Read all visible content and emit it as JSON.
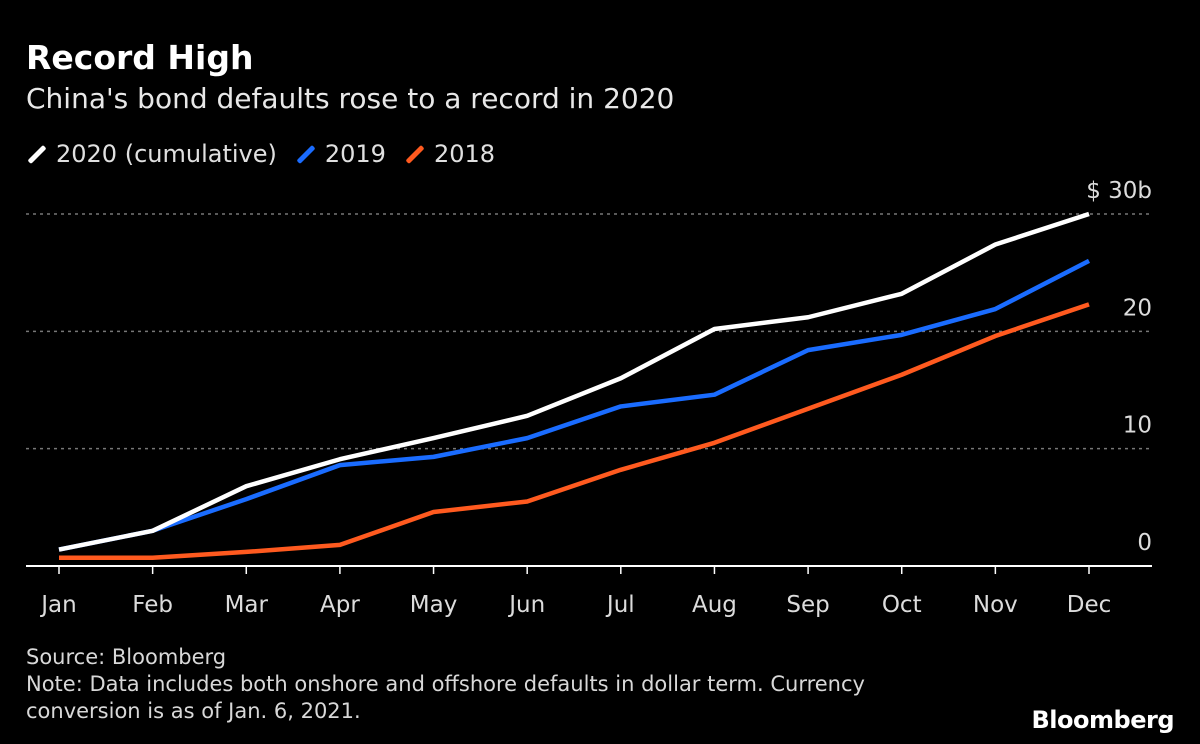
{
  "chart_data": {
    "type": "line",
    "title": "Record High",
    "subtitle": "China's bond defaults rose to a record in 2020",
    "categories": [
      "Jan",
      "Feb",
      "Mar",
      "Apr",
      "May",
      "Jun",
      "Jul",
      "Aug",
      "Sep",
      "Oct",
      "Nov",
      "Dec"
    ],
    "series": [
      {
        "name": "2020 (cumulative)",
        "color": "#ffffff",
        "values": [
          1.4,
          3.0,
          6.8,
          9.1,
          10.9,
          12.8,
          16.0,
          20.2,
          21.2,
          23.2,
          27.4,
          30.0
        ]
      },
      {
        "name": "2019",
        "color": "#1a6cff",
        "values": [
          1.4,
          3.0,
          5.7,
          8.6,
          9.3,
          10.9,
          13.6,
          14.6,
          18.4,
          19.7,
          21.9,
          26.0
        ]
      },
      {
        "name": "2018",
        "color": "#ff5a1f",
        "values": [
          0.7,
          0.7,
          1.2,
          1.8,
          4.6,
          5.5,
          8.2,
          10.5,
          13.4,
          16.3,
          19.6,
          22.3
        ]
      }
    ],
    "yticks": [
      {
        "value": 0,
        "label": "0"
      },
      {
        "value": 10,
        "label": "10"
      },
      {
        "value": 20,
        "label": "20"
      },
      {
        "value": 30,
        "label": "$ 30b"
      }
    ],
    "ylim": [
      0,
      30
    ],
    "grid": true,
    "legend": "top-left",
    "xlabel": "",
    "ylabel": ""
  },
  "footer": {
    "source": "Source: Bloomberg",
    "note_line1": "Note: Data includes both onshore and offshore defaults in dollar term. Currency",
    "note_line2": "conversion is as of Jan. 6, 2021."
  },
  "logo": "Bloomberg"
}
